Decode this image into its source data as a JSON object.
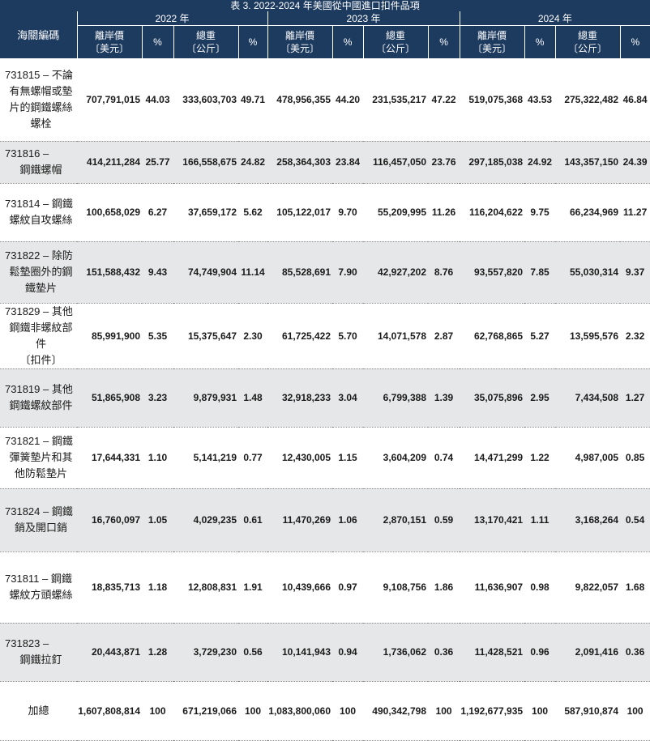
{
  "title": "表 3. 2022-2024 年美國從中國進口扣件品項",
  "header": {
    "col1": "海關編碼",
    "years": [
      "2022 年",
      "2023 年",
      "2024 年"
    ],
    "value_label": [
      "離岸價",
      "〔美元〕"
    ],
    "pct_label": "%",
    "weight_label": [
      "總重",
      "〔公斤〕"
    ]
  },
  "rows": [
    {
      "name": [
        "731815 – 不論",
        "有無螺帽或墊",
        "片的鋼鐵螺絲",
        "螺栓"
      ],
      "v": [
        "707,791,015",
        "44.03",
        "333,603,703",
        "49.71",
        "478,956,355",
        "44.20",
        "231,535,217",
        "47.22",
        "519,075,368",
        "43.53",
        "275,322,482",
        "46.84"
      ]
    },
    {
      "name": [
        "731816 –",
        "鋼鐵螺帽"
      ],
      "v": [
        "414,211,284",
        "25.77",
        "166,558,675",
        "24.82",
        "258,364,303",
        "23.84",
        "116,457,050",
        "23.76",
        "297,185,038",
        "24.92",
        "143,357,150",
        "24.39"
      ]
    },
    {
      "name": [
        "731814 – 鋼鐵",
        "螺紋自攻螺絲"
      ],
      "v": [
        "100,658,029",
        "6.27",
        "37,659,172",
        "5.62",
        "105,122,017",
        "9.70",
        "55,209,995",
        "11.26",
        "116,204,622",
        "9.75",
        "66,234,969",
        "11.27"
      ]
    },
    {
      "name": [
        "731822 – 除防",
        "鬆墊圈外的鋼",
        "鐵墊片"
      ],
      "v": [
        "151,588,432",
        "9.43",
        "74,749,904",
        "11.14",
        "85,528,691",
        "7.90",
        "42,927,202",
        "8.76",
        "93,557,820",
        "7.85",
        "55,030,314",
        "9.37"
      ]
    },
    {
      "name": [
        "731829 – 其他",
        "鋼鐵非螺紋部件",
        "〔扣件〕"
      ],
      "v": [
        "85,991,900",
        "5.35",
        "15,375,647",
        "2.30",
        "61,725,422",
        "5.70",
        "14,071,578",
        "2.87",
        "62,768,865",
        "5.27",
        "13,595,576",
        "2.32"
      ]
    },
    {
      "name": [
        "731819 – 其他",
        "鋼鐵螺紋部件"
      ],
      "v": [
        "51,865,908",
        "3.23",
        "9,879,931",
        "1.48",
        "32,918,233",
        "3.04",
        "6,799,388",
        "1.39",
        "35,075,896",
        "2.95",
        "7,434,508",
        "1.27"
      ]
    },
    {
      "name": [
        "731821 – 鋼鐵",
        "彈簧墊片和其",
        "他防鬆墊片"
      ],
      "v": [
        "17,644,331",
        "1.10",
        "5,141,219",
        "0.77",
        "12,430,005",
        "1.15",
        "3,604,209",
        "0.74",
        "14,471,299",
        "1.22",
        "4,987,005",
        "0.85"
      ]
    },
    {
      "name": [
        "731824 – 鋼鐵",
        "銷及開口銷"
      ],
      "v": [
        "16,760,097",
        "1.05",
        "4,029,235",
        "0.61",
        "11,470,269",
        "1.06",
        "2,870,151",
        "0.59",
        "13,170,421",
        "1.11",
        "3,168,264",
        "0.54"
      ]
    },
    {
      "name": [
        "731811 – 鋼鐵",
        "螺紋方頭螺絲"
      ],
      "v": [
        "18,835,713",
        "1.18",
        "12,808,831",
        "1.91",
        "10,439,666",
        "0.97",
        "9,108,756",
        "1.86",
        "11,636,907",
        "0.98",
        "9,822,057",
        "1.68"
      ]
    },
    {
      "name": [
        "731823 –",
        "鋼鐵拉釘"
      ],
      "v": [
        "20,443,871",
        "1.28",
        "3,729,230",
        "0.56",
        "10,141,943",
        "0.94",
        "1,736,062",
        "0.36",
        "11,428,521",
        "0.96",
        "2,091,416",
        "0.36"
      ]
    }
  ],
  "total": {
    "name": "加總",
    "v": [
      "1,607,808,814",
      "100",
      "671,219,066",
      "100",
      "1,083,800,060",
      "100",
      "490,342,798",
      "100",
      "1,192,677,935",
      "100",
      "587,910,874",
      "100"
    ]
  }
}
